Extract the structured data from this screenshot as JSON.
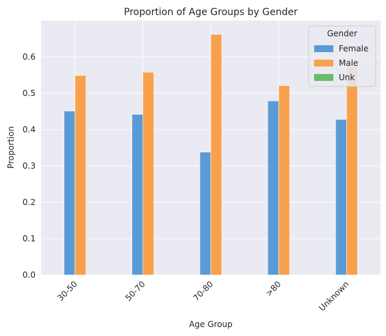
{
  "chart_data": {
    "type": "bar",
    "title": "Proportion of Age Groups by Gender",
    "xlabel": "Age Group",
    "ylabel": "Proportion",
    "categories": [
      "30-50",
      "50-70",
      "70-80",
      ">80",
      "Unknown"
    ],
    "ylim": [
      0,
      0.7
    ],
    "yticks": [
      "0.0",
      "0.1",
      "0.2",
      "0.3",
      "0.4",
      "0.5",
      "0.6"
    ],
    "grid": true,
    "legend_position": "top-right",
    "legend_title": "Gender",
    "series": [
      {
        "name": "Female",
        "color": "#5b9bd5",
        "values": [
          0.451,
          0.442,
          0.338,
          0.479,
          0.428
        ]
      },
      {
        "name": "Male",
        "color": "#f9a04c",
        "values": [
          0.549,
          0.558,
          0.662,
          0.521,
          0.572
        ]
      },
      {
        "name": "Unk",
        "color": "#6abb6a",
        "values": [
          0,
          0,
          0,
          0,
          0
        ]
      }
    ]
  }
}
